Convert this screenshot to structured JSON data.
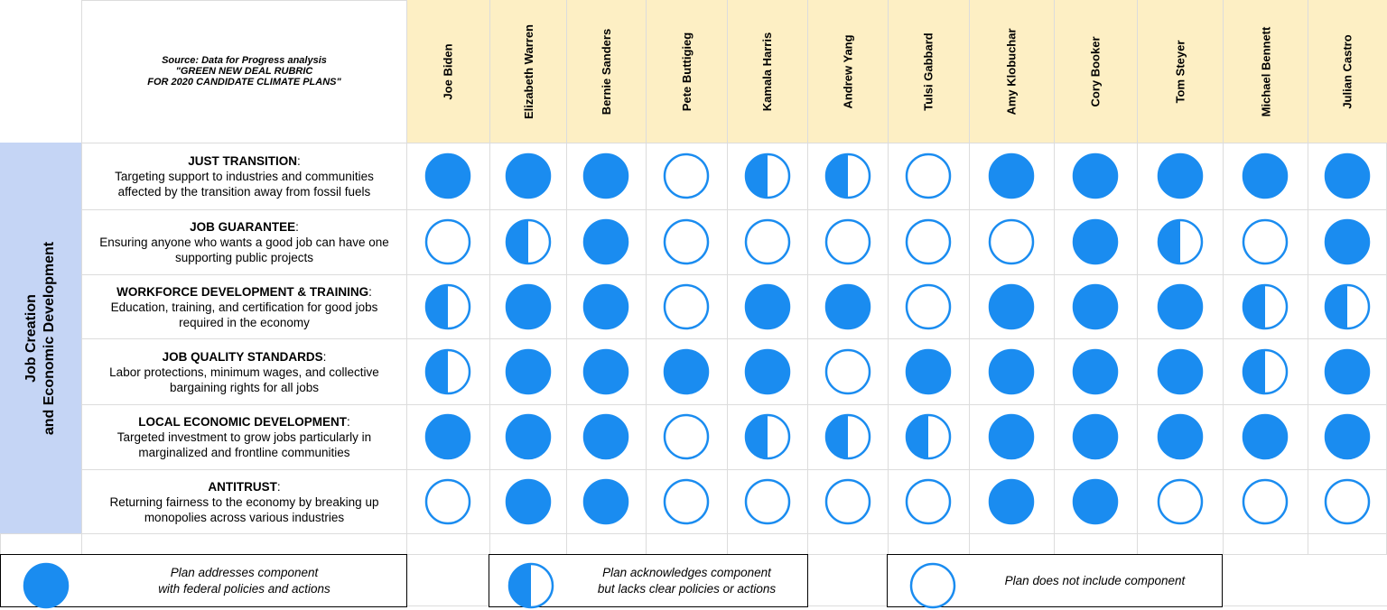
{
  "source": {
    "text": "Source: Data for Progress analysis\n\"GREEN NEW DEAL RUBRIC\nFOR 2020 CANDIDATE CLIMATE PLANS\""
  },
  "candidates": [
    "Joe Biden",
    "Elizabeth Warren",
    "Bernie Sanders",
    "Pete Buttigieg",
    "Kamala Harris",
    "Andrew Yang",
    "Tulsi Gabbard",
    "Amy Klobuchar",
    "Cory Booker",
    "Tom Steyer",
    "Michael Bennett",
    "Julian Castro"
  ],
  "category": {
    "line1": "Job Creation",
    "line2": "and Economic Development"
  },
  "components": [
    {
      "title": "JUST TRANSITION",
      "desc": "Targeting support to industries and communities\naffected by the transition away from fossil fuels",
      "ratings": [
        "full",
        "full",
        "full",
        "none",
        "half",
        "half",
        "none",
        "full",
        "full",
        "full",
        "full",
        "full"
      ]
    },
    {
      "title": "JOB GUARANTEE",
      "desc": "Ensuring anyone who wants a good job can have one\nsupporting public projects",
      "ratings": [
        "none",
        "half",
        "full",
        "none",
        "none",
        "none",
        "none",
        "none",
        "full",
        "half",
        "none",
        "full"
      ]
    },
    {
      "title": "WORKFORCE DEVELOPMENT & TRAINING",
      "desc": "Education, training, and certification for good jobs\nrequired in the economy",
      "ratings": [
        "half",
        "full",
        "full",
        "none",
        "full",
        "full",
        "none",
        "full",
        "full",
        "full",
        "half",
        "half"
      ]
    },
    {
      "title": "JOB QUALITY STANDARDS",
      "desc": "Labor protections, minimum wages, and collective\nbargaining rights for all jobs",
      "ratings": [
        "half",
        "full",
        "full",
        "full",
        "full",
        "none",
        "full",
        "full",
        "full",
        "full",
        "half",
        "full"
      ]
    },
    {
      "title": "LOCAL ECONOMIC DEVELOPMENT",
      "desc": "Targeted investment to grow jobs particularly in\nmarginalized and frontline communities",
      "ratings": [
        "full",
        "full",
        "full",
        "none",
        "half",
        "half",
        "half",
        "full",
        "full",
        "full",
        "full",
        "full"
      ]
    },
    {
      "title": "ANTITRUST",
      "desc": "Returning fairness to the economy by breaking up\nmonopolies across various industries",
      "ratings": [
        "none",
        "full",
        "full",
        "none",
        "none",
        "none",
        "none",
        "full",
        "full",
        "none",
        "none",
        "none"
      ]
    }
  ],
  "legend": {
    "full": "Plan addresses component\nwith federal policies and actions",
    "half": "Plan acknowledges component\nbut lacks clear policies or actions",
    "none": "Plan does not include component"
  },
  "colors": {
    "accent": "#1a8cf0",
    "header_fill": "#fdefc4",
    "category_fill": "#c5d5f5"
  }
}
